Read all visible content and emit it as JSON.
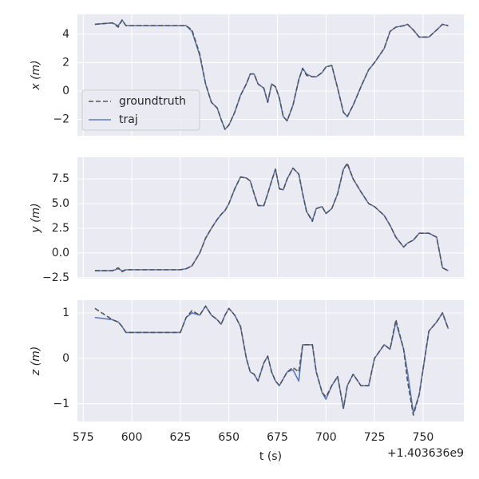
{
  "chart_data": [
    {
      "type": "line",
      "ylabel": "x (m)",
      "x": [
        581,
        590,
        593,
        595,
        597,
        625,
        628,
        631,
        635,
        638,
        641,
        644,
        646,
        648,
        650,
        653,
        656,
        659,
        661,
        663,
        665,
        668,
        670,
        672,
        674,
        676,
        678,
        680,
        683,
        686,
        688,
        690,
        693,
        695,
        698,
        700,
        703,
        706,
        709,
        711,
        714,
        718,
        722,
        725,
        730,
        733,
        736,
        740,
        742,
        745,
        748,
        753,
        757,
        760,
        763
      ],
      "series": [
        {
          "name": "groundtruth",
          "color": "#555555",
          "dash": true,
          "values": [
            4.7,
            4.8,
            4.5,
            5.0,
            4.6,
            4.6,
            4.6,
            4.3,
            2.6,
            0.5,
            -0.8,
            -1.2,
            -2.0,
            -2.7,
            -2.4,
            -1.5,
            -0.3,
            0.5,
            1.2,
            1.2,
            0.5,
            0.2,
            -0.8,
            0.5,
            0.3,
            -0.5,
            -1.8,
            -2.1,
            -1.0,
            0.8,
            1.6,
            1.1,
            1.0,
            1.0,
            1.3,
            1.7,
            1.8,
            0.2,
            -1.5,
            -1.8,
            -1.0,
            0.3,
            1.5,
            2.0,
            3.0,
            4.2,
            4.5,
            4.6,
            4.7,
            4.3,
            3.8,
            3.8,
            4.3,
            4.7,
            4.6
          ]
        },
        {
          "name": "traj",
          "color": "#5b7bbf",
          "dash": false,
          "values": [
            4.7,
            4.8,
            4.6,
            5.0,
            4.6,
            4.6,
            4.6,
            4.2,
            2.5,
            0.5,
            -0.8,
            -1.2,
            -2.0,
            -2.7,
            -2.4,
            -1.5,
            -0.3,
            0.5,
            1.2,
            1.2,
            0.5,
            0.2,
            -0.8,
            0.5,
            0.3,
            -0.5,
            -1.8,
            -2.1,
            -1.0,
            0.8,
            1.6,
            1.2,
            1.0,
            1.0,
            1.3,
            1.7,
            1.8,
            0.2,
            -1.5,
            -1.8,
            -1.0,
            0.3,
            1.5,
            2.0,
            3.0,
            4.2,
            4.5,
            4.6,
            4.7,
            4.3,
            3.8,
            3.8,
            4.3,
            4.7,
            4.6
          ]
        }
      ],
      "xlim": [
        572,
        771
      ],
      "xticks": [
        575,
        600,
        625,
        650,
        675,
        700,
        725,
        750
      ],
      "ylim": [
        -3.15,
        5.4
      ],
      "yticks": [
        {
          "value": -2,
          "label": "−2"
        },
        0,
        2,
        4
      ],
      "grid": true,
      "legend": "lower left"
    },
    {
      "type": "line",
      "ylabel": "y (m)",
      "x": [
        581,
        590,
        593,
        595,
        597,
        625,
        628,
        631,
        635,
        638,
        641,
        644,
        646,
        648,
        650,
        653,
        656,
        659,
        661,
        663,
        665,
        668,
        670,
        672,
        674,
        676,
        678,
        680,
        683,
        686,
        688,
        690,
        693,
        695,
        698,
        700,
        703,
        706,
        709,
        711,
        714,
        718,
        722,
        725,
        730,
        733,
        736,
        740,
        742,
        745,
        748,
        753,
        757,
        760,
        763
      ],
      "series": [
        {
          "name": "groundtruth",
          "color": "#555555",
          "dash": true,
          "values": [
            -1.8,
            -1.8,
            -1.5,
            -1.9,
            -1.7,
            -1.7,
            -1.6,
            -1.3,
            0,
            1.5,
            2.5,
            3.4,
            3.9,
            4.3,
            5.0,
            6.5,
            7.7,
            7.6,
            7.3,
            6.0,
            4.8,
            4.8,
            6.0,
            7.3,
            8.5,
            6.5,
            6.4,
            7.5,
            8.6,
            8.0,
            6.0,
            4.2,
            3.2,
            4.5,
            4.7,
            4.0,
            4.5,
            6.0,
            8.5,
            9.1,
            7.5,
            6.2,
            5.0,
            4.7,
            3.8,
            2.8,
            1.6,
            0.6,
            1.0,
            1.3,
            2.0,
            2.0,
            1.6,
            -1.5,
            -1.8
          ]
        },
        {
          "name": "traj",
          "color": "#5b7bbf",
          "dash": false,
          "values": [
            -1.8,
            -1.8,
            -1.6,
            -1.8,
            -1.7,
            -1.7,
            -1.6,
            -1.3,
            0,
            1.5,
            2.5,
            3.4,
            3.9,
            4.3,
            5.0,
            6.5,
            7.7,
            7.6,
            7.3,
            6.0,
            4.8,
            4.8,
            6.0,
            7.3,
            8.5,
            6.5,
            6.4,
            7.5,
            8.6,
            8.0,
            6.0,
            4.2,
            3.3,
            4.5,
            4.7,
            4.0,
            4.5,
            6.0,
            8.5,
            9.0,
            7.5,
            6.2,
            5.0,
            4.7,
            3.8,
            2.8,
            1.6,
            0.6,
            1.0,
            1.3,
            2.0,
            2.0,
            1.6,
            -1.5,
            -1.8
          ]
        }
      ],
      "xlim": [
        572,
        771
      ],
      "xticks": [
        575,
        600,
        625,
        650,
        675,
        700,
        725,
        750
      ],
      "ylim": [
        -2.6,
        9.7
      ],
      "yticks": [
        {
          "value": -2.5,
          "label": "−2.5"
        },
        {
          "value": 0,
          "label": "0.0"
        },
        2.5,
        {
          "value": 5,
          "label": "5.0"
        },
        7.5
      ],
      "grid": true
    },
    {
      "type": "line",
      "ylabel": "z (m)",
      "xlabel": "t (s)",
      "offset": "+1.403636e9",
      "x": [
        581,
        590,
        593,
        595,
        597,
        625,
        628,
        631,
        635,
        638,
        641,
        644,
        646,
        648,
        650,
        653,
        656,
        659,
        661,
        663,
        665,
        668,
        670,
        672,
        674,
        676,
        678,
        680,
        683,
        686,
        688,
        690,
        693,
        695,
        698,
        700,
        703,
        706,
        709,
        711,
        714,
        718,
        722,
        725,
        730,
        733,
        736,
        740,
        742,
        745,
        748,
        753,
        757,
        760,
        763
      ],
      "series": [
        {
          "name": "groundtruth",
          "color": "#555555",
          "dash": true,
          "values": [
            1.1,
            0.85,
            0.8,
            0.7,
            0.57,
            0.57,
            0.9,
            1.05,
            0.95,
            1.15,
            0.95,
            0.85,
            0.75,
            0.95,
            1.1,
            0.95,
            0.7,
            0.0,
            -0.3,
            -0.35,
            -0.5,
            -0.1,
            0.05,
            -0.3,
            -0.5,
            -0.6,
            -0.45,
            -0.3,
            -0.2,
            -0.3,
            0.3,
            0.3,
            0.3,
            -0.3,
            -0.75,
            -0.85,
            -0.6,
            -0.4,
            -1.1,
            -0.6,
            -0.35,
            -0.6,
            -0.6,
            0.0,
            0.3,
            0.2,
            0.85,
            0.2,
            -0.5,
            -1.25,
            -0.8,
            0.6,
            0.8,
            1.0,
            0.65
          ]
        },
        {
          "name": "traj",
          "color": "#5b7bbf",
          "dash": false,
          "values": [
            0.9,
            0.85,
            0.8,
            0.7,
            0.57,
            0.57,
            0.9,
            1.0,
            0.95,
            1.15,
            0.95,
            0.85,
            0.75,
            0.95,
            1.1,
            0.95,
            0.7,
            0.0,
            -0.3,
            -0.35,
            -0.5,
            -0.1,
            0.05,
            -0.3,
            -0.5,
            -0.6,
            -0.45,
            -0.3,
            -0.25,
            -0.5,
            0.3,
            0.3,
            0.3,
            -0.3,
            -0.75,
            -0.9,
            -0.6,
            -0.4,
            -1.1,
            -0.6,
            -0.35,
            -0.6,
            -0.6,
            0.0,
            0.3,
            0.2,
            0.8,
            0.2,
            -0.3,
            -1.2,
            -0.8,
            0.6,
            0.8,
            1.0,
            0.65
          ]
        }
      ],
      "xlim": [
        572,
        771
      ],
      "xticks": [
        575,
        600,
        625,
        650,
        675,
        700,
        725,
        750
      ],
      "ylim": [
        -1.39,
        1.28
      ],
      "yticks": [
        {
          "value": -1,
          "label": "−1"
        },
        0,
        1
      ],
      "grid": true
    }
  ]
}
